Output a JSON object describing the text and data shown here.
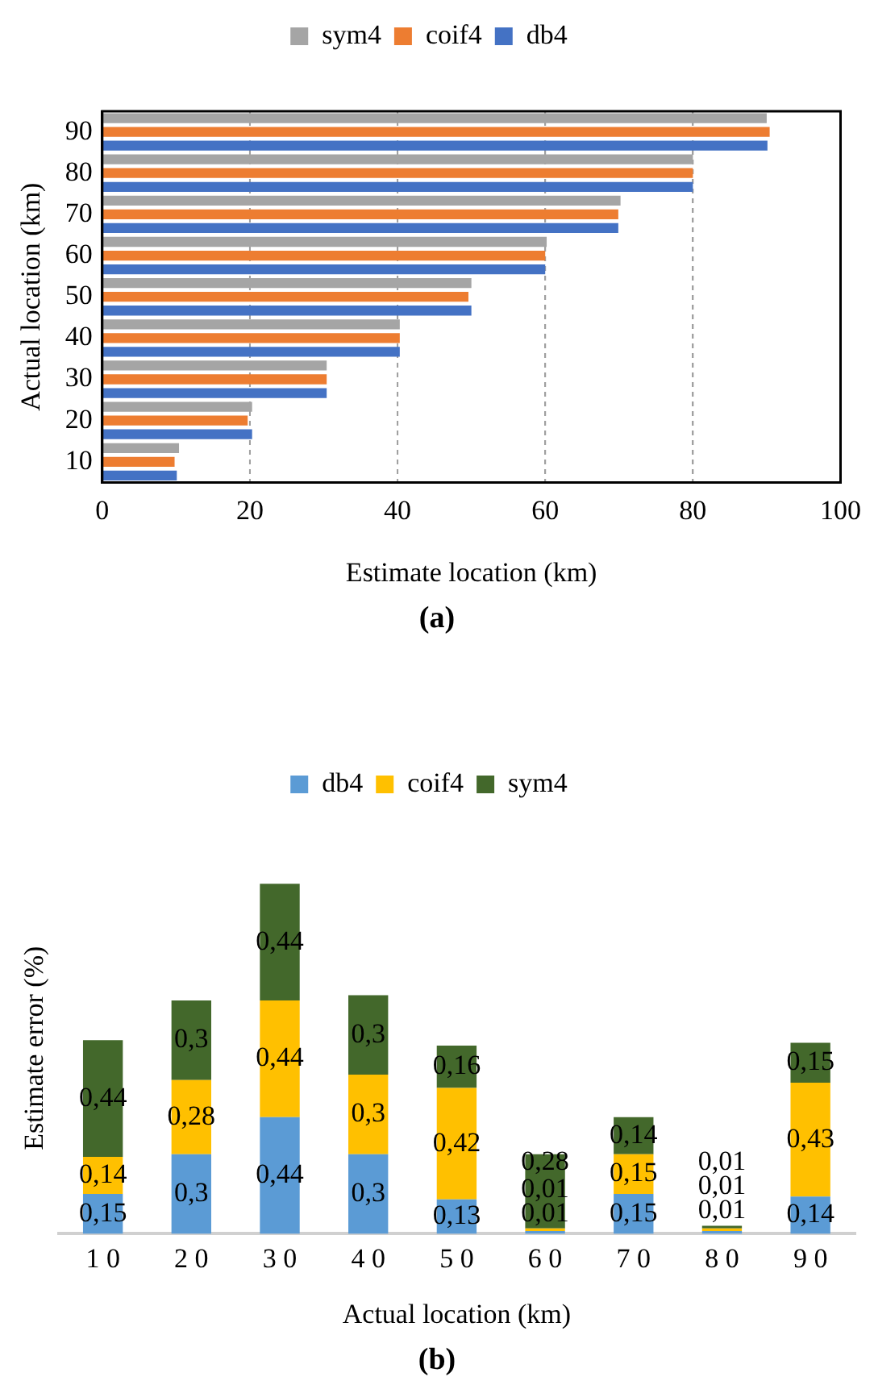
{
  "chart_data": [
    {
      "type": "bar",
      "orientation": "horizontal",
      "categories": [
        "90",
        "80",
        "70",
        "60",
        "50",
        "40",
        "30",
        "20",
        "10"
      ],
      "series": [
        {
          "name": "sym4",
          "color": "#a5a5a5",
          "values": [
            90.0,
            80.0,
            70.2,
            60.2,
            50.0,
            40.3,
            30.4,
            20.3,
            10.4
          ]
        },
        {
          "name": "coif4",
          "color": "#ed7d31",
          "values": [
            90.4,
            80.0,
            69.9,
            60.0,
            49.6,
            40.3,
            30.4,
            19.7,
            9.8
          ]
        },
        {
          "name": "db4",
          "color": "#4472c4",
          "values": [
            90.1,
            80.0,
            69.9,
            60.0,
            50.0,
            40.3,
            30.4,
            20.3,
            10.1
          ]
        }
      ],
      "xlim": [
        0,
        100
      ],
      "xticks": [
        0,
        20,
        40,
        60,
        80,
        100
      ],
      "xlabel": "Estimate location (km)",
      "ylabel": "Actual location (km)",
      "grid": "x",
      "legend": "top",
      "annotations": [
        "(a)"
      ]
    },
    {
      "type": "bar",
      "stacked": true,
      "categories": [
        "1 0",
        "2 0",
        "3 0",
        "4 0",
        "5 0",
        "6 0",
        "7 0",
        "8 0",
        "9 0"
      ],
      "series": [
        {
          "name": "db4",
          "color": "#5b9bd5",
          "values": [
            0.15,
            0.3,
            0.44,
            0.3,
            0.13,
            0.01,
            0.15,
            0.01,
            0.14
          ],
          "value_labels": [
            "0,15",
            "0,3",
            "0,44",
            "0,3",
            "0,13",
            "0,01",
            "0,15",
            "0,01",
            "0,14"
          ]
        },
        {
          "name": "coif4",
          "color": "#ffc000",
          "values": [
            0.14,
            0.28,
            0.44,
            0.3,
            0.42,
            0.01,
            0.15,
            0.01,
            0.43
          ],
          "value_labels": [
            "0,14",
            "0,28",
            "0,44",
            "0,3",
            "0,42",
            "0,01",
            "0,15",
            "0,01",
            "0,43"
          ]
        },
        {
          "name": "sym4",
          "color": "#43682b",
          "values": [
            0.44,
            0.3,
            0.44,
            0.3,
            0.16,
            0.28,
            0.14,
            0.01,
            0.15
          ],
          "value_labels": [
            "0,44",
            "0,3",
            "0,44",
            "0,3",
            "0,16",
            "0,28",
            "0,14",
            "0,01",
            "0,15"
          ]
        }
      ],
      "xlabel": "Actual location (km)",
      "ylabel": "Estimate error (%)",
      "legend": "top",
      "annotations": [
        "(b)"
      ]
    }
  ]
}
